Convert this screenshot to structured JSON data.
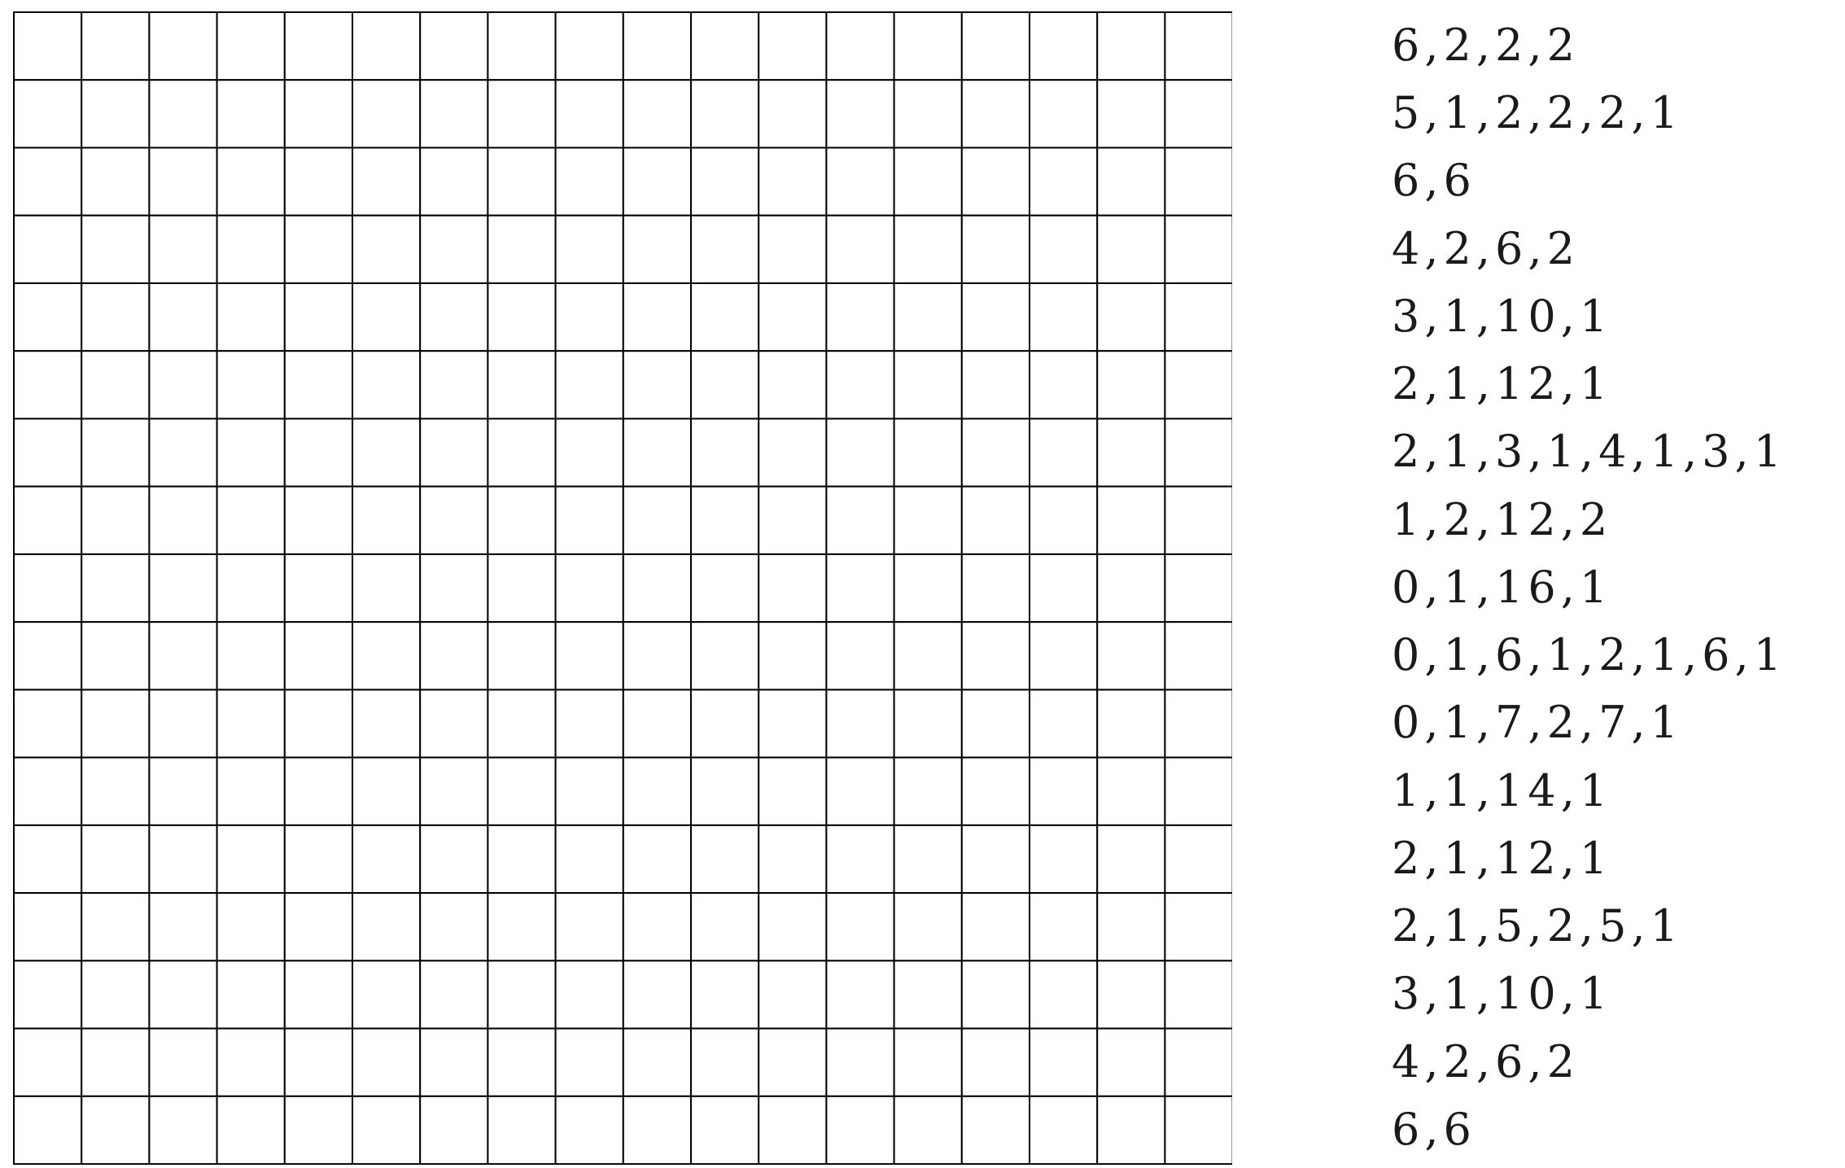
{
  "puzzle": {
    "rows": 17,
    "cols": 18,
    "grid_line_color": "#000000",
    "cell_fill_color": "#ffffff",
    "row_clues": [
      "6,2,2,2",
      "5,1,2,2,2,1",
      "6,6",
      "4,2,6,2",
      "3,1,10,1",
      "2,1,12,1",
      "2,1,3,1,4,1,3,1",
      "1,2,12,2",
      "0,1,16,1",
      "0,1,6,1,2,1,6,1",
      "0,1,7,2,7,1",
      "1,1,14,1",
      "2,1,12,1",
      "2,1,5,2,5,1",
      "3,1,10,1",
      "4,2,6,2",
      "6,6"
    ]
  }
}
